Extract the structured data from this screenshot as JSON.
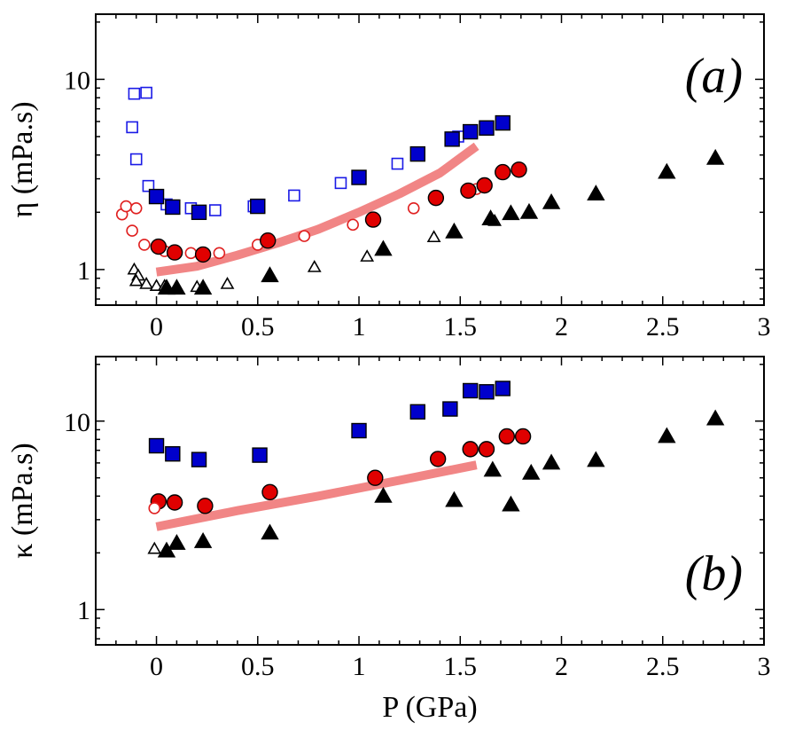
{
  "chart_data": [
    {
      "type": "scatter",
      "panel_label": "(a)",
      "y_scale": "log",
      "xlim": [
        -0.3,
        3
      ],
      "ylim": [
        0.65,
        22
      ],
      "xlabel": "",
      "ylabel": "η (mPa.s)",
      "x_ticks": [
        "0",
        "0.5",
        "1",
        "1.5",
        "2",
        "2.5",
        "3"
      ],
      "y_ticks": [
        "1",
        "10"
      ],
      "series": [
        {
          "name": "squares-open",
          "marker": "square",
          "filled": false,
          "color": "#1a1ae6",
          "x": [
            -0.11,
            -0.05,
            -0.12,
            -0.1,
            -0.04,
            0.05,
            0.17,
            0.29,
            0.48,
            0.68,
            0.91,
            1.19,
            1.49
          ],
          "y": [
            8.4,
            8.5,
            5.6,
            3.8,
            2.75,
            2.2,
            2.1,
            2.05,
            2.15,
            2.45,
            2.85,
            3.6,
            5.0
          ]
        },
        {
          "name": "squares-filled",
          "marker": "square",
          "filled": true,
          "color": "#0000cc",
          "x": [
            0.0,
            0.08,
            0.21,
            0.5,
            1.0,
            1.29,
            1.46,
            1.55,
            1.63,
            1.71
          ],
          "y": [
            2.42,
            2.13,
            2.0,
            2.15,
            3.05,
            4.05,
            4.85,
            5.3,
            5.55,
            5.9
          ]
        },
        {
          "name": "circles-open",
          "marker": "circle",
          "filled": false,
          "color": "#e02020",
          "x": [
            -0.17,
            -0.15,
            -0.12,
            -0.1,
            -0.06,
            0.04,
            0.17,
            0.31,
            0.5,
            0.73,
            0.97,
            1.27,
            1.58
          ],
          "y": [
            1.95,
            2.15,
            1.6,
            2.1,
            1.35,
            1.25,
            1.22,
            1.22,
            1.35,
            1.5,
            1.72,
            2.1,
            2.65
          ]
        },
        {
          "name": "circles-filled",
          "marker": "circle",
          "filled": true,
          "color": "#e00000",
          "x": [
            0.01,
            0.09,
            0.23,
            0.55,
            1.07,
            1.38,
            1.54,
            1.62,
            1.71,
            1.79
          ],
          "y": [
            1.32,
            1.23,
            1.2,
            1.42,
            1.83,
            2.38,
            2.6,
            2.77,
            3.25,
            3.35
          ]
        },
        {
          "name": "triangles-open",
          "marker": "triangle",
          "filled": false,
          "color": "#000000",
          "x": [
            -0.11,
            -0.09,
            -0.1,
            -0.05,
            0.0,
            0.04,
            0.2,
            0.35,
            0.56,
            0.78,
            1.04,
            1.37,
            1.67
          ],
          "y": [
            1.0,
            0.93,
            0.87,
            0.84,
            0.82,
            0.82,
            0.81,
            0.84,
            0.92,
            1.03,
            1.17,
            1.48,
            1.8
          ]
        },
        {
          "name": "triangles-filled",
          "marker": "triangle",
          "filled": true,
          "color": "#000000",
          "x": [
            0.05,
            0.1,
            0.23,
            0.56,
            1.12,
            1.47,
            1.65,
            1.75,
            1.84,
            1.95,
            2.17,
            2.52,
            2.76
          ],
          "y": [
            0.8,
            0.8,
            0.8,
            0.93,
            1.28,
            1.58,
            1.85,
            1.97,
            2.0,
            2.25,
            2.5,
            3.25,
            3.85
          ]
        }
      ],
      "fit_line": {
        "color": "#f07878",
        "x": [
          0.0,
          0.2,
          0.4,
          0.6,
          0.8,
          1.0,
          1.2,
          1.4,
          1.58
        ],
        "y": [
          0.97,
          1.04,
          1.19,
          1.38,
          1.63,
          2.0,
          2.5,
          3.22,
          4.45
        ]
      }
    },
    {
      "type": "scatter",
      "panel_label": "(b)",
      "y_scale": "log",
      "xlim": [
        -0.3,
        3
      ],
      "ylim": [
        0.65,
        22
      ],
      "xlabel": "P (GPa)",
      "ylabel": "κ (mPa.s)",
      "x_ticks": [
        "0",
        "0.5",
        "1",
        "1.5",
        "2",
        "2.5",
        "3"
      ],
      "y_ticks": [
        "1",
        "10"
      ],
      "series": [
        {
          "name": "squares-filled",
          "marker": "square",
          "filled": true,
          "color": "#0000cc",
          "x": [
            0.0,
            0.08,
            0.21,
            0.51,
            1.0,
            1.29,
            1.45,
            1.55,
            1.63,
            1.71
          ],
          "y": [
            7.4,
            6.7,
            6.25,
            6.6,
            8.9,
            11.2,
            11.6,
            14.5,
            14.3,
            14.9
          ]
        },
        {
          "name": "circles-filled",
          "marker": "circle",
          "filled": true,
          "color": "#e00000",
          "x": [
            0.01,
            0.09,
            0.24,
            0.56,
            1.08,
            1.39,
            1.55,
            1.63,
            1.73,
            1.81
          ],
          "y": [
            3.75,
            3.7,
            3.55,
            4.2,
            5.0,
            6.3,
            7.1,
            7.1,
            8.3,
            8.3
          ]
        },
        {
          "name": "circles-open",
          "marker": "circle",
          "filled": false,
          "color": "#e02020",
          "x": [
            -0.01
          ],
          "y": [
            3.45
          ]
        },
        {
          "name": "triangles-open",
          "marker": "triangle",
          "filled": false,
          "color": "#000000",
          "x": [
            -0.01
          ],
          "y": [
            2.1
          ]
        },
        {
          "name": "triangles-filled",
          "marker": "triangle",
          "filled": true,
          "color": "#000000",
          "x": [
            0.05,
            0.1,
            0.23,
            0.56,
            1.12,
            1.47,
            1.66,
            1.75,
            1.85,
            1.95,
            2.17,
            2.52,
            2.76
          ],
          "y": [
            2.05,
            2.25,
            2.3,
            2.55,
            4.0,
            3.8,
            5.5,
            3.6,
            5.3,
            6.0,
            6.2,
            8.3,
            10.3
          ]
        }
      ],
      "fit_line": {
        "color": "#f07878",
        "x": [
          0.0,
          0.4,
          0.8,
          1.2,
          1.58
        ],
        "y": [
          2.75,
          3.35,
          4.0,
          4.85,
          5.85
        ]
      }
    }
  ]
}
